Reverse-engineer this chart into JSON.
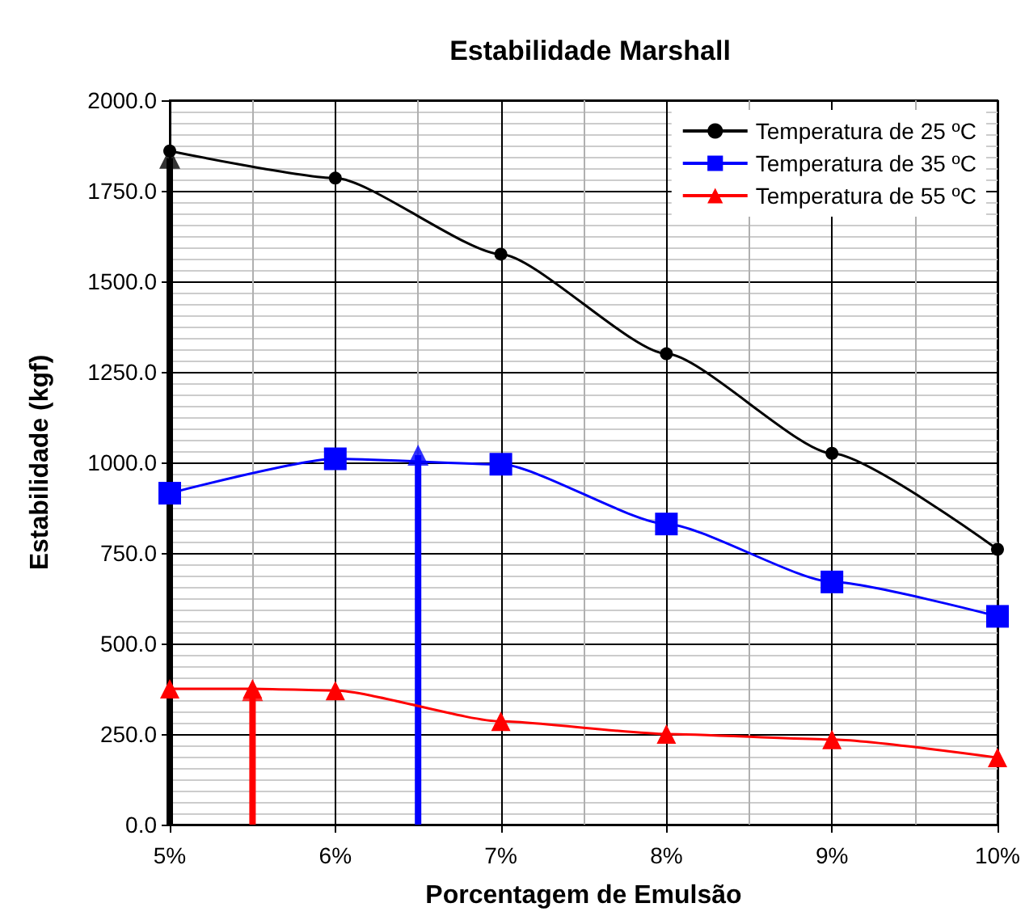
{
  "chart_data": {
    "type": "line",
    "title": "Estabilidade Marshall",
    "xlabel": "Porcentagem de Emulsão",
    "ylabel": "Estabilidade (kgf)",
    "x": [
      5,
      6,
      7,
      8,
      9,
      10
    ],
    "series": [
      {
        "name": "Temperatura de 25 ºC",
        "color": "#000000",
        "marker": "circle",
        "values": [
          1860,
          1785,
          1575,
          1300,
          1025,
          760
        ]
      },
      {
        "name": "Temperatura de 35 ºC",
        "color": "#0000ff",
        "marker": "square",
        "values": [
          915,
          1010,
          995,
          830,
          670,
          575
        ]
      },
      {
        "name": "Temperatura de 55 ºC",
        "color": "#ff0000",
        "marker": "triangle",
        "values": [
          375,
          375,
          370,
          285,
          250,
          235,
          185
        ],
        "x": [
          5,
          5.5,
          6,
          7,
          8,
          9,
          10
        ]
      },
      {
        "type": "lollipop",
        "colors": [
          "#000000",
          "#ff0000",
          "#0000ff"
        ],
        "marker": "triangle",
        "x": [
          5,
          5.5,
          6.5
        ],
        "values": [
          1840,
          370,
          1020
        ]
      }
    ],
    "xlim": [
      5,
      10
    ],
    "xticks": [
      {
        "value": 5,
        "label": "5%"
      },
      {
        "value": 6,
        "label": "6%"
      },
      {
        "value": 7,
        "label": "7%"
      },
      {
        "value": 8,
        "label": "8%"
      },
      {
        "value": 9,
        "label": "9%"
      },
      {
        "value": 10,
        "label": "10%"
      }
    ],
    "ylim": [
      0,
      2000
    ],
    "yticks": [
      {
        "value": 0,
        "label": "0.0"
      },
      {
        "value": 250,
        "label": "250.0"
      },
      {
        "value": 500,
        "label": "500.0"
      },
      {
        "value": 750,
        "label": "750.0"
      },
      {
        "value": 1000,
        "label": "1000.0"
      },
      {
        "value": 1250,
        "label": "1250.0"
      },
      {
        "value": 1500,
        "label": "1500.0"
      },
      {
        "value": 1750,
        "label": "1750.0"
      },
      {
        "value": 2000,
        "label": "2000.0"
      }
    ],
    "grid": true,
    "legend": "top right",
    "line_style": "solid"
  }
}
